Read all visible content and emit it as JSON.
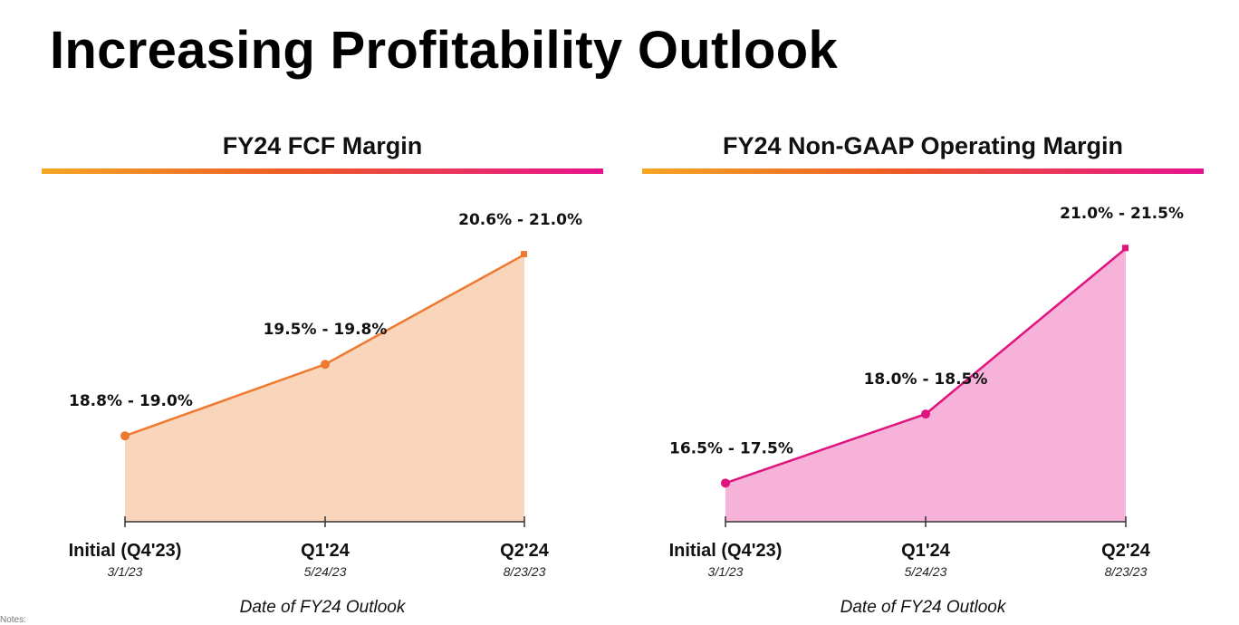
{
  "slide": {
    "title": "Increasing Profitability Outlook",
    "notes": "Notes:"
  },
  "chart_data": [
    {
      "type": "area",
      "title": "FY24 FCF Margin",
      "xlabel": "Date of FY24 Outlook",
      "ylabel": "",
      "categories": [
        "Initial (Q4'23)",
        "Q1'24",
        "Q2'24"
      ],
      "dates": [
        "3/1/23",
        "5/24/23",
        "8/23/23"
      ],
      "labels": [
        "18.8% - 19.0%",
        "19.5% - 19.8%",
        "20.6% - 21.0%"
      ],
      "values": [
        18.9,
        19.65,
        20.8
      ],
      "ylim": [
        18.0,
        21.0
      ],
      "line_color": "#ee7a30",
      "fill_color": "#f9d5bc"
    },
    {
      "type": "area",
      "title": "FY24 Non-GAAP Operating Margin",
      "xlabel": "Date of FY24 Outlook",
      "ylabel": "",
      "categories": [
        "Initial (Q4'23)",
        "Q1'24",
        "Q2'24"
      ],
      "dates": [
        "3/1/23",
        "5/24/23",
        "8/23/23"
      ],
      "labels": [
        "16.5% - 17.5%",
        "18.0% - 18.5%",
        "21.0% - 21.5%"
      ],
      "values": [
        17.0,
        18.25,
        21.25
      ],
      "ylim": [
        16.3,
        21.5
      ],
      "line_color": "#e0147f",
      "fill_color": "#f7b2d9"
    }
  ]
}
